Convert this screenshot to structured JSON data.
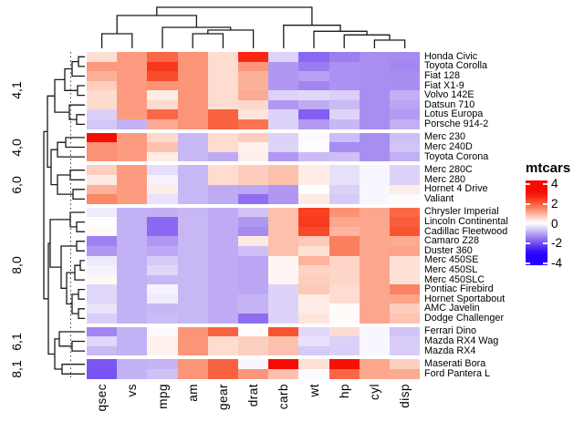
{
  "chart_data": {
    "type": "heatmap",
    "title": "mtcars",
    "columns": [
      "qsec",
      "vs",
      "mpg",
      "am",
      "gear",
      "drat",
      "carb",
      "wt",
      "hp",
      "cyl",
      "disp"
    ],
    "slices": [
      {
        "label": "4,1",
        "rows": [
          "Honda Civic",
          "Toyota Corolla",
          "Fiat 128",
          "Fiat X1-9",
          "Volvo 142E",
          "Datsun 710",
          "Lotus Europa",
          "Porsche 914-2"
        ],
        "values": [
          [
            0.38,
            1.12,
            1.71,
            1.19,
            0.42,
            2.49,
            -0.5,
            -1.64,
            -1.38,
            -1.22,
            -1.25
          ],
          [
            1.15,
            1.12,
            2.29,
            1.19,
            0.42,
            1.17,
            -1.12,
            -1.41,
            -1.19,
            -1.22,
            -1.29
          ],
          [
            0.91,
            1.12,
            2.04,
            1.19,
            0.42,
            0.9,
            -1.12,
            -1.04,
            -1.18,
            -1.22,
            -1.23
          ],
          [
            0.59,
            1.12,
            1.2,
            1.19,
            0.42,
            0.9,
            -1.12,
            -1.31,
            -1.18,
            -1.22,
            -1.22
          ],
          [
            0.42,
            1.12,
            0.22,
            1.19,
            0.42,
            0.96,
            -0.5,
            -0.45,
            -0.55,
            -1.22,
            -0.89
          ],
          [
            0.43,
            1.12,
            0.45,
            1.19,
            0.42,
            0.47,
            -1.12,
            -0.92,
            -0.78,
            -1.22,
            -0.99
          ],
          [
            -0.53,
            1.12,
            1.71,
            1.19,
            1.78,
            0.32,
            -0.5,
            -1.74,
            -0.49,
            -1.22,
            -1.09
          ],
          [
            -0.64,
            -0.87,
            0.98,
            1.19,
            1.78,
            1.56,
            -0.5,
            -1.1,
            -0.81,
            -1.22,
            -0.89
          ]
        ]
      },
      {
        "label": "4,0",
        "rows": [
          "Merc 230",
          "Merc 240D",
          "Toyota Corona"
        ],
        "values": [
          [
            2.83,
            1.12,
            0.45,
            -0.81,
            0.42,
            0.6,
            -0.5,
            -0.07,
            -0.75,
            -1.22,
            -0.73
          ],
          [
            1.2,
            1.12,
            0.72,
            -0.81,
            0.42,
            0.17,
            -0.5,
            -0.03,
            -1.24,
            -1.22,
            -0.68
          ],
          [
            1.21,
            1.12,
            0.23,
            -0.81,
            -0.93,
            0.19,
            -1.12,
            -0.77,
            -0.72,
            -1.22,
            -0.89
          ]
        ]
      },
      {
        "label": "6,0",
        "rows": [
          "Merc 280C",
          "Merc 280",
          "Hornet 4 Drive",
          "Valiant"
        ],
        "values": [
          [
            0.59,
            1.12,
            -0.38,
            -0.81,
            0.42,
            0.6,
            0.74,
            0.23,
            -0.35,
            -0.1,
            -0.51
          ],
          [
            0.25,
            1.12,
            -0.15,
            -0.81,
            0.42,
            0.6,
            0.74,
            0.23,
            -0.35,
            -0.1,
            -0.51
          ],
          [
            0.89,
            1.12,
            0.22,
            -0.81,
            -0.93,
            -0.97,
            -1.12,
            0.0,
            -0.54,
            -0.1,
            0.22
          ],
          [
            1.33,
            1.12,
            -0.33,
            -0.81,
            -0.93,
            -1.56,
            -1.12,
            0.25,
            -0.61,
            -0.1,
            -0.05
          ]
        ]
      },
      {
        "label": "8,0",
        "rows": [
          "Chrysler Imperial",
          "Lincoln Continental",
          "Cadillac Fleetwood",
          "Camaro Z28",
          "Duster 360",
          "Merc 450SE",
          "Merc 450SL",
          "Merc 450SLC",
          "Pontiac Firebird",
          "Hornet Sportabout",
          "AMC Javelin",
          "Dodge Challenger"
        ],
        "values": [
          [
            -0.24,
            -0.87,
            -0.89,
            -0.81,
            -0.93,
            -0.69,
            0.74,
            2.17,
            1.22,
            1.01,
            1.69
          ],
          [
            -0.02,
            -0.87,
            -1.61,
            -0.81,
            -0.93,
            -1.12,
            0.74,
            2.26,
            1.0,
            1.01,
            1.85
          ],
          [
            0.07,
            -0.87,
            -1.61,
            -0.81,
            -0.93,
            -1.25,
            0.74,
            2.08,
            0.85,
            1.01,
            1.95
          ],
          [
            -1.36,
            -0.87,
            -1.13,
            -0.81,
            -0.93,
            0.25,
            0.74,
            0.64,
            1.43,
            1.01,
            0.96
          ],
          [
            -1.12,
            -0.87,
            -0.96,
            -0.81,
            -0.93,
            -0.72,
            0.74,
            0.36,
            1.43,
            1.01,
            1.04
          ],
          [
            -0.25,
            -0.87,
            -0.61,
            -0.81,
            -0.93,
            -0.98,
            0.12,
            0.87,
            0.49,
            1.01,
            0.36
          ],
          [
            -0.14,
            -0.87,
            -0.46,
            -0.81,
            -0.93,
            -0.98,
            0.12,
            0.52,
            0.49,
            1.01,
            0.36
          ],
          [
            0.08,
            -0.87,
            -0.81,
            -0.81,
            -0.93,
            -0.98,
            0.12,
            0.58,
            0.49,
            1.01,
            0.36
          ],
          [
            -0.45,
            -0.87,
            -0.15,
            -0.81,
            -0.93,
            -0.97,
            -0.5,
            0.64,
            0.41,
            1.01,
            1.37
          ],
          [
            -0.46,
            -0.87,
            -0.23,
            -0.81,
            -0.93,
            -0.84,
            -0.5,
            0.23,
            0.41,
            1.01,
            1.04
          ],
          [
            -0.31,
            -0.87,
            -0.81,
            -0.81,
            -0.93,
            -0.84,
            -0.5,
            0.22,
            0.05,
            1.01,
            0.59
          ],
          [
            -0.55,
            -0.87,
            -0.76,
            -0.81,
            -0.93,
            -1.56,
            -0.5,
            0.31,
            0.05,
            1.01,
            0.7
          ]
        ]
      },
      {
        "label": "6,1",
        "rows": [
          "Ferrari Dino",
          "Mazda RX4 Wag",
          "Mazda RX4"
        ],
        "values": [
          [
            -1.31,
            -0.87,
            -0.06,
            1.19,
            1.78,
            0.04,
            1.97,
            -0.46,
            0.41,
            -0.1,
            -0.69
          ],
          [
            -0.46,
            -0.87,
            0.15,
            1.19,
            0.42,
            0.57,
            0.74,
            -0.35,
            -0.54,
            -0.1,
            -0.57
          ],
          [
            -0.78,
            -0.87,
            0.15,
            1.19,
            0.42,
            0.57,
            0.74,
            -0.61,
            -0.54,
            -0.1,
            -0.57
          ]
        ]
      },
      {
        "label": "8,1",
        "rows": [
          "Maserati Bora",
          "Ford Pantera L"
        ],
        "values": [
          [
            -1.82,
            -0.87,
            -0.84,
            1.19,
            1.78,
            -0.11,
            3.21,
            0.36,
            2.75,
            1.01,
            0.57
          ],
          [
            -1.87,
            -0.87,
            -0.71,
            1.19,
            1.78,
            1.17,
            0.74,
            -0.05,
            1.71,
            1.01,
            0.97
          ]
        ]
      }
    ],
    "legend": {
      "title": "mtcars",
      "tick_labels": [
        "4",
        "2",
        "0",
        "-2",
        "-4"
      ],
      "tick_values": [
        4,
        2,
        0,
        -2,
        -4
      ],
      "range": [
        -4,
        4
      ]
    },
    "colors": {
      "positive_max": "#F60C02",
      "zero": "#FFFFFF",
      "negative_max": "#2600FB",
      "saturation": 2.8
    },
    "layout": {
      "row_dendrogram": true,
      "column_dendrogram": true,
      "row_cut_line": true
    }
  }
}
